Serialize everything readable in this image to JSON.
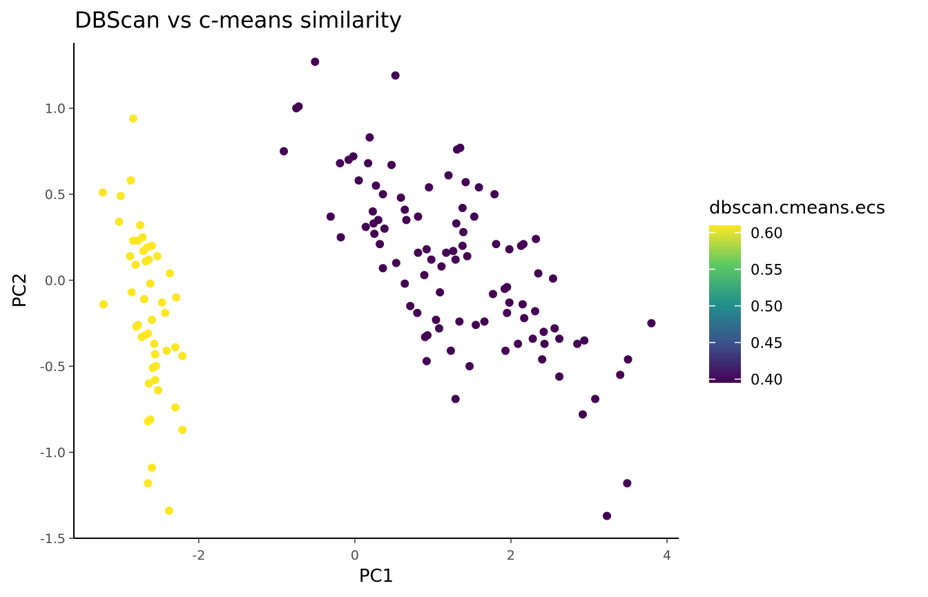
{
  "chart_data": {
    "type": "scatter",
    "title": "DBScan vs c-means similarity",
    "xlabel": "PC1",
    "ylabel": "PC2",
    "xlim": [
      -3.6,
      4.15
    ],
    "ylim": [
      -1.5,
      1.38
    ],
    "xticks": [
      {
        "value": -2,
        "label": "-2"
      },
      {
        "value": 0,
        "label": "0"
      },
      {
        "value": 2,
        "label": "2"
      },
      {
        "value": 4,
        "label": "4"
      }
    ],
    "yticks": [
      {
        "value": 1.0,
        "label": "1.0"
      },
      {
        "value": 0.5,
        "label": "0.5"
      },
      {
        "value": 0.0,
        "label": "0.0"
      },
      {
        "value": -0.5,
        "label": "-0.5"
      },
      {
        "value": -1.0,
        "label": "-1.0"
      },
      {
        "value": -1.5,
        "label": "-1.5"
      }
    ],
    "grid": false,
    "legend": {
      "title": "dbscan.cmeans.ecs",
      "placement": "right",
      "type": "colorbar",
      "range": [
        0.395,
        0.61
      ],
      "ticks": [
        {
          "value": 0.6,
          "label": "0.60"
        },
        {
          "value": 0.55,
          "label": "0.55"
        },
        {
          "value": 0.5,
          "label": "0.50"
        },
        {
          "value": 0.45,
          "label": "0.45"
        },
        {
          "value": 0.4,
          "label": "0.40"
        }
      ],
      "colors": [
        "#440154",
        "#3b528b",
        "#21918c",
        "#5ec962",
        "#fde725"
      ]
    },
    "series": [
      {
        "ecs": 0.61,
        "color": "#fde725",
        "points": [
          [
            -2.84,
            0.94
          ],
          [
            -2.87,
            0.58
          ],
          [
            -3.23,
            0.51
          ],
          [
            -3.0,
            0.49
          ],
          [
            -3.02,
            0.34
          ],
          [
            -2.75,
            0.32
          ],
          [
            -2.72,
            0.25
          ],
          [
            -2.78,
            0.23
          ],
          [
            -2.84,
            0.23
          ],
          [
            -2.6,
            0.2
          ],
          [
            -2.66,
            0.19
          ],
          [
            -2.71,
            0.17
          ],
          [
            -2.88,
            0.14
          ],
          [
            -2.53,
            0.14
          ],
          [
            -2.64,
            0.12
          ],
          [
            -2.68,
            0.11
          ],
          [
            -2.81,
            0.09
          ],
          [
            -2.37,
            0.04
          ],
          [
            -2.62,
            -0.02
          ],
          [
            -2.29,
            -0.1
          ],
          [
            -2.86,
            -0.07
          ],
          [
            -2.7,
            -0.11
          ],
          [
            -2.47,
            -0.13
          ],
          [
            -3.22,
            -0.14
          ],
          [
            -2.43,
            -0.19
          ],
          [
            -2.6,
            -0.23
          ],
          [
            -2.78,
            -0.26
          ],
          [
            -2.8,
            -0.27
          ],
          [
            -2.65,
            -0.31
          ],
          [
            -2.69,
            -0.32
          ],
          [
            -2.73,
            -0.33
          ],
          [
            -2.57,
            -0.37
          ],
          [
            -2.3,
            -0.39
          ],
          [
            -2.41,
            -0.41
          ],
          [
            -2.21,
            -0.44
          ],
          [
            -2.56,
            -0.43
          ],
          [
            -2.55,
            -0.5
          ],
          [
            -2.59,
            -0.51
          ],
          [
            -2.56,
            -0.58
          ],
          [
            -2.64,
            -0.6
          ],
          [
            -2.52,
            -0.64
          ],
          [
            -2.3,
            -0.74
          ],
          [
            -2.62,
            -0.81
          ],
          [
            -2.65,
            -0.82
          ],
          [
            -2.21,
            -0.87
          ],
          [
            -2.6,
            -1.09
          ],
          [
            -2.65,
            -1.18
          ],
          [
            -2.38,
            -1.34
          ]
        ]
      },
      {
        "ecs": 0.4,
        "color": "#440154",
        "points": [
          [
            -0.51,
            1.27
          ],
          [
            0.52,
            1.19
          ],
          [
            -0.72,
            1.01
          ],
          [
            -0.75,
            1.0
          ],
          [
            -0.91,
            0.75
          ],
          [
            0.19,
            0.83
          ],
          [
            1.35,
            0.77
          ],
          [
            1.31,
            0.76
          ],
          [
            -0.02,
            0.72
          ],
          [
            -0.08,
            0.7
          ],
          [
            -0.19,
            0.68
          ],
          [
            0.17,
            0.68
          ],
          [
            0.47,
            0.67
          ],
          [
            1.2,
            0.61
          ],
          [
            0.05,
            0.58
          ],
          [
            1.42,
            0.57
          ],
          [
            0.27,
            0.55
          ],
          [
            0.95,
            0.54
          ],
          [
            1.59,
            0.54
          ],
          [
            0.36,
            0.5
          ],
          [
            1.79,
            0.5
          ],
          [
            0.59,
            0.48
          ],
          [
            1.38,
            0.42
          ],
          [
            0.64,
            0.41
          ],
          [
            0.23,
            0.4
          ],
          [
            1.53,
            0.37
          ],
          [
            -0.31,
            0.37
          ],
          [
            0.81,
            0.37
          ],
          [
            0.66,
            0.35
          ],
          [
            0.3,
            0.35
          ],
          [
            0.24,
            0.33
          ],
          [
            1.3,
            0.33
          ],
          [
            0.14,
            0.31
          ],
          [
            0.38,
            0.3
          ],
          [
            1.39,
            0.28
          ],
          [
            0.25,
            0.27
          ],
          [
            -0.18,
            0.25
          ],
          [
            2.32,
            0.24
          ],
          [
            2.16,
            0.21
          ],
          [
            2.13,
            0.2
          ],
          [
            1.81,
            0.21
          ],
          [
            1.38,
            0.2
          ],
          [
            0.32,
            0.21
          ],
          [
            0.92,
            0.18
          ],
          [
            1.98,
            0.18
          ],
          [
            1.26,
            0.17
          ],
          [
            1.17,
            0.16
          ],
          [
            0.81,
            0.16
          ],
          [
            1.44,
            0.14
          ],
          [
            0.98,
            0.12
          ],
          [
            1.29,
            0.12
          ],
          [
            1.11,
            0.08
          ],
          [
            0.36,
            0.07
          ],
          [
            0.53,
            0.1
          ],
          [
            2.35,
            0.04
          ],
          [
            0.89,
            0.03
          ],
          [
            2.54,
            0.01
          ],
          [
            0.64,
            -0.02
          ],
          [
            1.95,
            -0.04
          ],
          [
            1.92,
            -0.05
          ],
          [
            1.09,
            -0.07
          ],
          [
            1.77,
            -0.08
          ],
          [
            1.98,
            -0.13
          ],
          [
            2.15,
            -0.14
          ],
          [
            0.71,
            -0.15
          ],
          [
            2.31,
            -0.18
          ],
          [
            1.95,
            -0.19
          ],
          [
            0.8,
            -0.19
          ],
          [
            2.17,
            -0.22
          ],
          [
            1.04,
            -0.23
          ],
          [
            1.66,
            -0.24
          ],
          [
            1.34,
            -0.24
          ],
          [
            3.8,
            -0.25
          ],
          [
            1.55,
            -0.26
          ],
          [
            2.56,
            -0.28
          ],
          [
            1.08,
            -0.28
          ],
          [
            2.42,
            -0.3
          ],
          [
            0.93,
            -0.32
          ],
          [
            0.9,
            -0.33
          ],
          [
            2.28,
            -0.34
          ],
          [
            2.62,
            -0.34
          ],
          [
            2.94,
            -0.35
          ],
          [
            2.85,
            -0.37
          ],
          [
            2.09,
            -0.37
          ],
          [
            2.43,
            -0.37
          ],
          [
            1.93,
            -0.41
          ],
          [
            1.23,
            -0.41
          ],
          [
            0.92,
            -0.47
          ],
          [
            2.4,
            -0.46
          ],
          [
            3.5,
            -0.46
          ],
          [
            1.47,
            -0.5
          ],
          [
            3.4,
            -0.55
          ],
          [
            2.62,
            -0.56
          ],
          [
            1.29,
            -0.69
          ],
          [
            3.08,
            -0.69
          ],
          [
            2.92,
            -0.78
          ],
          [
            3.49,
            -1.18
          ],
          [
            3.23,
            -1.37
          ]
        ]
      }
    ]
  }
}
